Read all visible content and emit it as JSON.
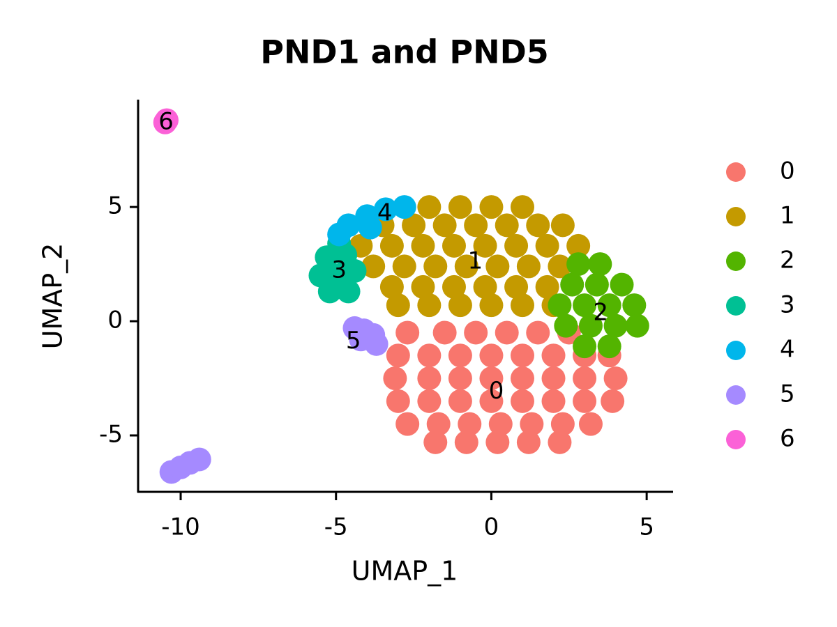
{
  "chart_data": {
    "type": "scatter",
    "title": "PND1 and PND5",
    "xlabel": "UMAP_1",
    "ylabel": "UMAP_2",
    "xlim": [
      -11.37,
      5.85
    ],
    "ylim": [
      -7.47,
      9.7
    ],
    "xticks": [
      -10,
      -5,
      0,
      5
    ],
    "yticks": [
      -5,
      0,
      5
    ],
    "series": [
      {
        "name": "0",
        "color": "#F8766D",
        "x": [
          -2.7,
          -1.5,
          -0.5,
          0.5,
          1.5,
          2.5,
          -3.0,
          -2,
          -1,
          0,
          1,
          2,
          3,
          3.8,
          -3.1,
          -2,
          -1,
          0,
          1,
          2,
          3,
          4,
          -3,
          -2,
          -1,
          0,
          1,
          2,
          3,
          3.9,
          -2.7,
          -1.7,
          -0.7,
          0.3,
          1.3,
          2.3,
          3.2,
          -1.8,
          -0.8,
          0.2,
          1.2,
          2.2
        ],
        "y": [
          -0.5,
          -0.5,
          -0.5,
          -0.5,
          -0.5,
          -0.5,
          -1.5,
          -1.5,
          -1.5,
          -1.5,
          -1.5,
          -1.5,
          -1.5,
          -1.5,
          -2.5,
          -2.5,
          -2.5,
          -2.5,
          -2.5,
          -2.5,
          -2.5,
          -2.5,
          -3.5,
          -3.5,
          -3.5,
          -3.5,
          -3.5,
          -3.5,
          -3.5,
          -3.5,
          -4.5,
          -4.5,
          -4.5,
          -4.5,
          -4.5,
          -4.5,
          -4.5,
          -5.3,
          -5.3,
          -5.3,
          -5.3,
          -5.3
        ]
      },
      {
        "name": "1",
        "color": "#C49A00",
        "x": [
          -2,
          -1,
          0,
          1,
          -3.5,
          -2.5,
          -1.5,
          -0.5,
          0.5,
          1.5,
          2.3,
          -4.2,
          -3.2,
          -2.2,
          -1.2,
          -0.2,
          0.8,
          1.8,
          2.8,
          -3.8,
          -2.8,
          -1.8,
          -0.8,
          0.2,
          1.2,
          2.2,
          -3.2,
          -2.2,
          -1.2,
          -0.2,
          0.8,
          1.8,
          -3.0,
          -2,
          -1,
          0,
          1,
          2
        ],
        "y": [
          5.0,
          5.0,
          5.0,
          5.0,
          4.2,
          4.2,
          4.2,
          4.2,
          4.2,
          4.2,
          4.2,
          3.3,
          3.3,
          3.3,
          3.3,
          3.3,
          3.3,
          3.3,
          3.3,
          2.4,
          2.4,
          2.4,
          2.4,
          2.4,
          2.4,
          2.4,
          1.5,
          1.5,
          1.5,
          1.5,
          1.5,
          1.5,
          0.7,
          0.7,
          0.7,
          0.7,
          0.7,
          0.7
        ]
      },
      {
        "name": "2",
        "color": "#53B400",
        "x": [
          2.8,
          3.5,
          2.6,
          3.4,
          4.2,
          2.2,
          3.0,
          3.8,
          4.6,
          2.4,
          3.2,
          4.0,
          4.7,
          3.0,
          3.8
        ],
        "y": [
          2.5,
          2.5,
          1.6,
          1.6,
          1.6,
          0.7,
          0.7,
          0.7,
          0.7,
          -0.2,
          -0.2,
          -0.2,
          -0.2,
          -1.1,
          -1.1
        ]
      },
      {
        "name": "3",
        "color": "#00C094",
        "x": [
          -5.3,
          -4.7,
          -5.5,
          -4.9,
          -4.4,
          -5.2,
          -4.6,
          -4.9
        ],
        "y": [
          2.8,
          2.9,
          2.0,
          2.0,
          2.2,
          1.3,
          1.3,
          3.4
        ]
      },
      {
        "name": "4",
        "color": "#00B6EB",
        "x": [
          -4.6,
          -4.0,
          -3.4,
          -2.8,
          -4.9,
          -3.9
        ],
        "y": [
          4.2,
          4.6,
          4.9,
          5.0,
          3.8,
          4.1
        ]
      },
      {
        "name": "5",
        "color": "#A58AFF",
        "x": [
          -4.1,
          -3.8,
          -4.2,
          -3.7,
          -4.4,
          -10.3,
          -10.0,
          -9.7,
          -9.4
        ],
        "y": [
          -0.4,
          -0.6,
          -0.8,
          -1.0,
          -0.3,
          -6.6,
          -6.4,
          -6.2,
          -6.05
        ]
      },
      {
        "name": "6",
        "color": "#FB61D7",
        "x": [
          -10.5,
          -10.45
        ],
        "y": [
          8.7,
          8.8
        ]
      }
    ],
    "annotations": [
      {
        "text": "0",
        "x": 0.16,
        "y": -3.1
      },
      {
        "text": "1",
        "x": -0.52,
        "y": 2.6
      },
      {
        "text": "2",
        "x": 3.52,
        "y": 0.34
      },
      {
        "text": "3",
        "x": -4.9,
        "y": 2.2
      },
      {
        "text": "4",
        "x": -3.43,
        "y": 4.7
      },
      {
        "text": "5",
        "x": -4.44,
        "y": -0.9
      },
      {
        "text": "6",
        "x": -10.47,
        "y": 8.7
      }
    ]
  }
}
